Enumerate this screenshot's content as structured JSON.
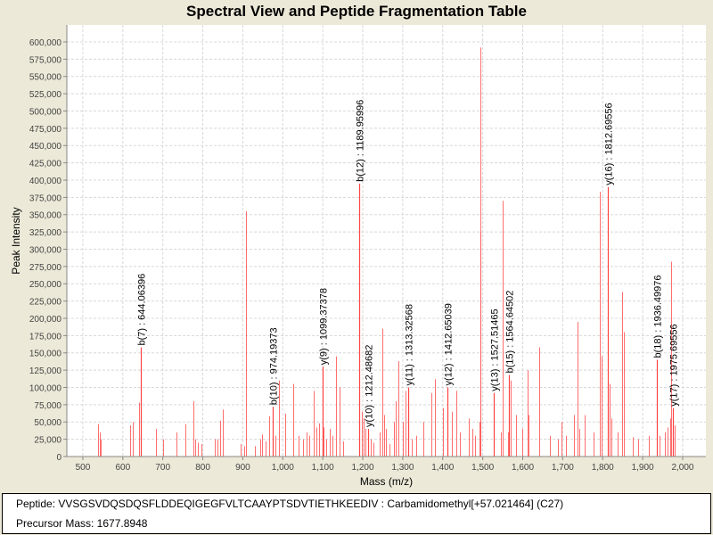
{
  "chart_data": {
    "type": "bar",
    "title": "Spectral View and Peptide Fragmentation Table",
    "xlabel": "Mass (m/z)",
    "ylabel": "Peak Intensity",
    "xlim": [
      460,
      2058
    ],
    "ylim": [
      0,
      624500
    ],
    "grid": true,
    "xticks": [
      500,
      600,
      700,
      800,
      900,
      1000,
      1100,
      1200,
      1300,
      1400,
      1500,
      1600,
      1700,
      1800,
      1900,
      2000
    ],
    "xtick_labels": [
      "500",
      "600",
      "700",
      "800",
      "900",
      "1,000",
      "1,100",
      "1,200",
      "1,300",
      "1,400",
      "1,500",
      "1,600",
      "1,700",
      "1,800",
      "1,900",
      "2,000"
    ],
    "yticks": [
      0,
      25000,
      50000,
      75000,
      100000,
      125000,
      150000,
      175000,
      200000,
      225000,
      250000,
      275000,
      300000,
      325000,
      350000,
      375000,
      400000,
      425000,
      450000,
      475000,
      500000,
      525000,
      550000,
      575000,
      600000
    ],
    "ytick_labels": [
      "0",
      "25,000",
      "50,000",
      "75,000",
      "100,000",
      "125,000",
      "150,000",
      "175,000",
      "200,000",
      "225,000",
      "250,000",
      "275,000",
      "300,000",
      "325,000",
      "350,000",
      "375,000",
      "400,000",
      "425,000",
      "450,000",
      "475,000",
      "500,000",
      "525,000",
      "550,000",
      "575,000",
      "600,000"
    ],
    "peaks": [
      [
        538,
        47000
      ],
      [
        542,
        35000
      ],
      [
        545,
        25000
      ],
      [
        618,
        45000
      ],
      [
        625,
        50000
      ],
      [
        640,
        78000
      ],
      [
        683,
        40000
      ],
      [
        700,
        25000
      ],
      [
        734,
        35000
      ],
      [
        756,
        47000
      ],
      [
        776,
        80000
      ],
      [
        781,
        25000
      ],
      [
        788,
        20000
      ],
      [
        796,
        18000
      ],
      [
        830,
        25000
      ],
      [
        836,
        25000
      ],
      [
        843,
        52000
      ],
      [
        850,
        68000
      ],
      [
        894,
        18000
      ],
      [
        903,
        15000
      ],
      [
        908,
        355000
      ],
      [
        930,
        15000
      ],
      [
        943,
        25000
      ],
      [
        948,
        32000
      ],
      [
        957,
        22000
      ],
      [
        966,
        58000
      ],
      [
        982,
        30000
      ],
      [
        990,
        110000
      ],
      [
        1006,
        62000
      ],
      [
        1026,
        105000
      ],
      [
        1039,
        30000
      ],
      [
        1050,
        25000
      ],
      [
        1059,
        35000
      ],
      [
        1066,
        30000
      ],
      [
        1077,
        95000
      ],
      [
        1084,
        42000
      ],
      [
        1091,
        48000
      ],
      [
        1102,
        42000
      ],
      [
        1109,
        25000
      ],
      [
        1117,
        40000
      ],
      [
        1124,
        30000
      ],
      [
        1133,
        145000
      ],
      [
        1142,
        100000
      ],
      [
        1151,
        22000
      ],
      [
        1198,
        65000
      ],
      [
        1202,
        55000
      ],
      [
        1207,
        40000
      ],
      [
        1220,
        25000
      ],
      [
        1226,
        20000
      ],
      [
        1242,
        35000
      ],
      [
        1249,
        185000
      ],
      [
        1253,
        60000
      ],
      [
        1258,
        40000
      ],
      [
        1267,
        18000
      ],
      [
        1278,
        50000
      ],
      [
        1282,
        80000
      ],
      [
        1289,
        138000
      ],
      [
        1300,
        50000
      ],
      [
        1307,
        95000
      ],
      [
        1322,
        25000
      ],
      [
        1334,
        30000
      ],
      [
        1351,
        50000
      ],
      [
        1371,
        92000
      ],
      [
        1380,
        112000
      ],
      [
        1400,
        70000
      ],
      [
        1423,
        65000
      ],
      [
        1434,
        95000
      ],
      [
        1443,
        35000
      ],
      [
        1465,
        55000
      ],
      [
        1474,
        40000
      ],
      [
        1481,
        30000
      ],
      [
        1492,
        50000
      ],
      [
        1494,
        592000
      ],
      [
        1495,
        325000
      ],
      [
        1545,
        35000
      ],
      [
        1550,
        370000
      ],
      [
        1563,
        35000
      ],
      [
        1570,
        110000
      ],
      [
        1583,
        60000
      ],
      [
        1599,
        40000
      ],
      [
        1612,
        125000
      ],
      [
        1614,
        60000
      ],
      [
        1641,
        158000
      ],
      [
        1668,
        30000
      ],
      [
        1688,
        25000
      ],
      [
        1697,
        50000
      ],
      [
        1708,
        30000
      ],
      [
        1728,
        60000
      ],
      [
        1737,
        195000
      ],
      [
        1741,
        40000
      ],
      [
        1755,
        60000
      ],
      [
        1777,
        35000
      ],
      [
        1793,
        383000
      ],
      [
        1797,
        145000
      ],
      [
        1818,
        105000
      ],
      [
        1822,
        55000
      ],
      [
        1838,
        35000
      ],
      [
        1849,
        238000
      ],
      [
        1853,
        180000
      ],
      [
        1876,
        28000
      ],
      [
        1888,
        25000
      ],
      [
        1915,
        30000
      ],
      [
        1942,
        30000
      ],
      [
        1955,
        35000
      ],
      [
        1962,
        42000
      ],
      [
        1969,
        55000
      ],
      [
        1971,
        282000
      ],
      [
        1980,
        45000
      ]
    ],
    "annotations": [
      {
        "label": "b(7) : 644.06396",
        "mass": 644.06396,
        "intensity": 158000
      },
      {
        "label": "b(10) : 974.19373",
        "mass": 974.19373,
        "intensity": 72000
      },
      {
        "label": "y(9) : 1099.37378",
        "mass": 1099.37378,
        "intensity": 130000
      },
      {
        "label": "b(12) : 1189.95996",
        "mass": 1189.95996,
        "intensity": 395000
      },
      {
        "label": "y(10) : 1212.48682",
        "mass": 1212.48682,
        "intensity": 40000
      },
      {
        "label": "y(11) : 1313.32568",
        "mass": 1313.32568,
        "intensity": 100000
      },
      {
        "label": "y(12) : 1412.65039",
        "mass": 1412.65039,
        "intensity": 100000
      },
      {
        "label": "y(13) : 1527.51465",
        "mass": 1527.51465,
        "intensity": 92000
      },
      {
        "label": "b(15) : 1564.64502",
        "mass": 1564.64502,
        "intensity": 118000
      },
      {
        "label": "y(16) : 1812.69556",
        "mass": 1812.69556,
        "intensity": 390000
      },
      {
        "label": "b(18) : 1936.49976",
        "mass": 1936.49976,
        "intensity": 140000
      },
      {
        "label": "y(17) : 1975.69556",
        "mass": 1975.69556,
        "intensity": 70000
      }
    ],
    "colors": {
      "peak": "#ff5555",
      "annotated_peak": "#ff4444",
      "grid": "#d8d8d8"
    }
  },
  "info": {
    "peptide": "Peptide: VVSGSVDQSDQSFLDDEQIGEGFVLTCAAYPTSDVTIETHKEEDIV : Carbamidomethyl[+57.021464] (C27)",
    "precursor": "Precursor Mass: 1677.8948"
  }
}
